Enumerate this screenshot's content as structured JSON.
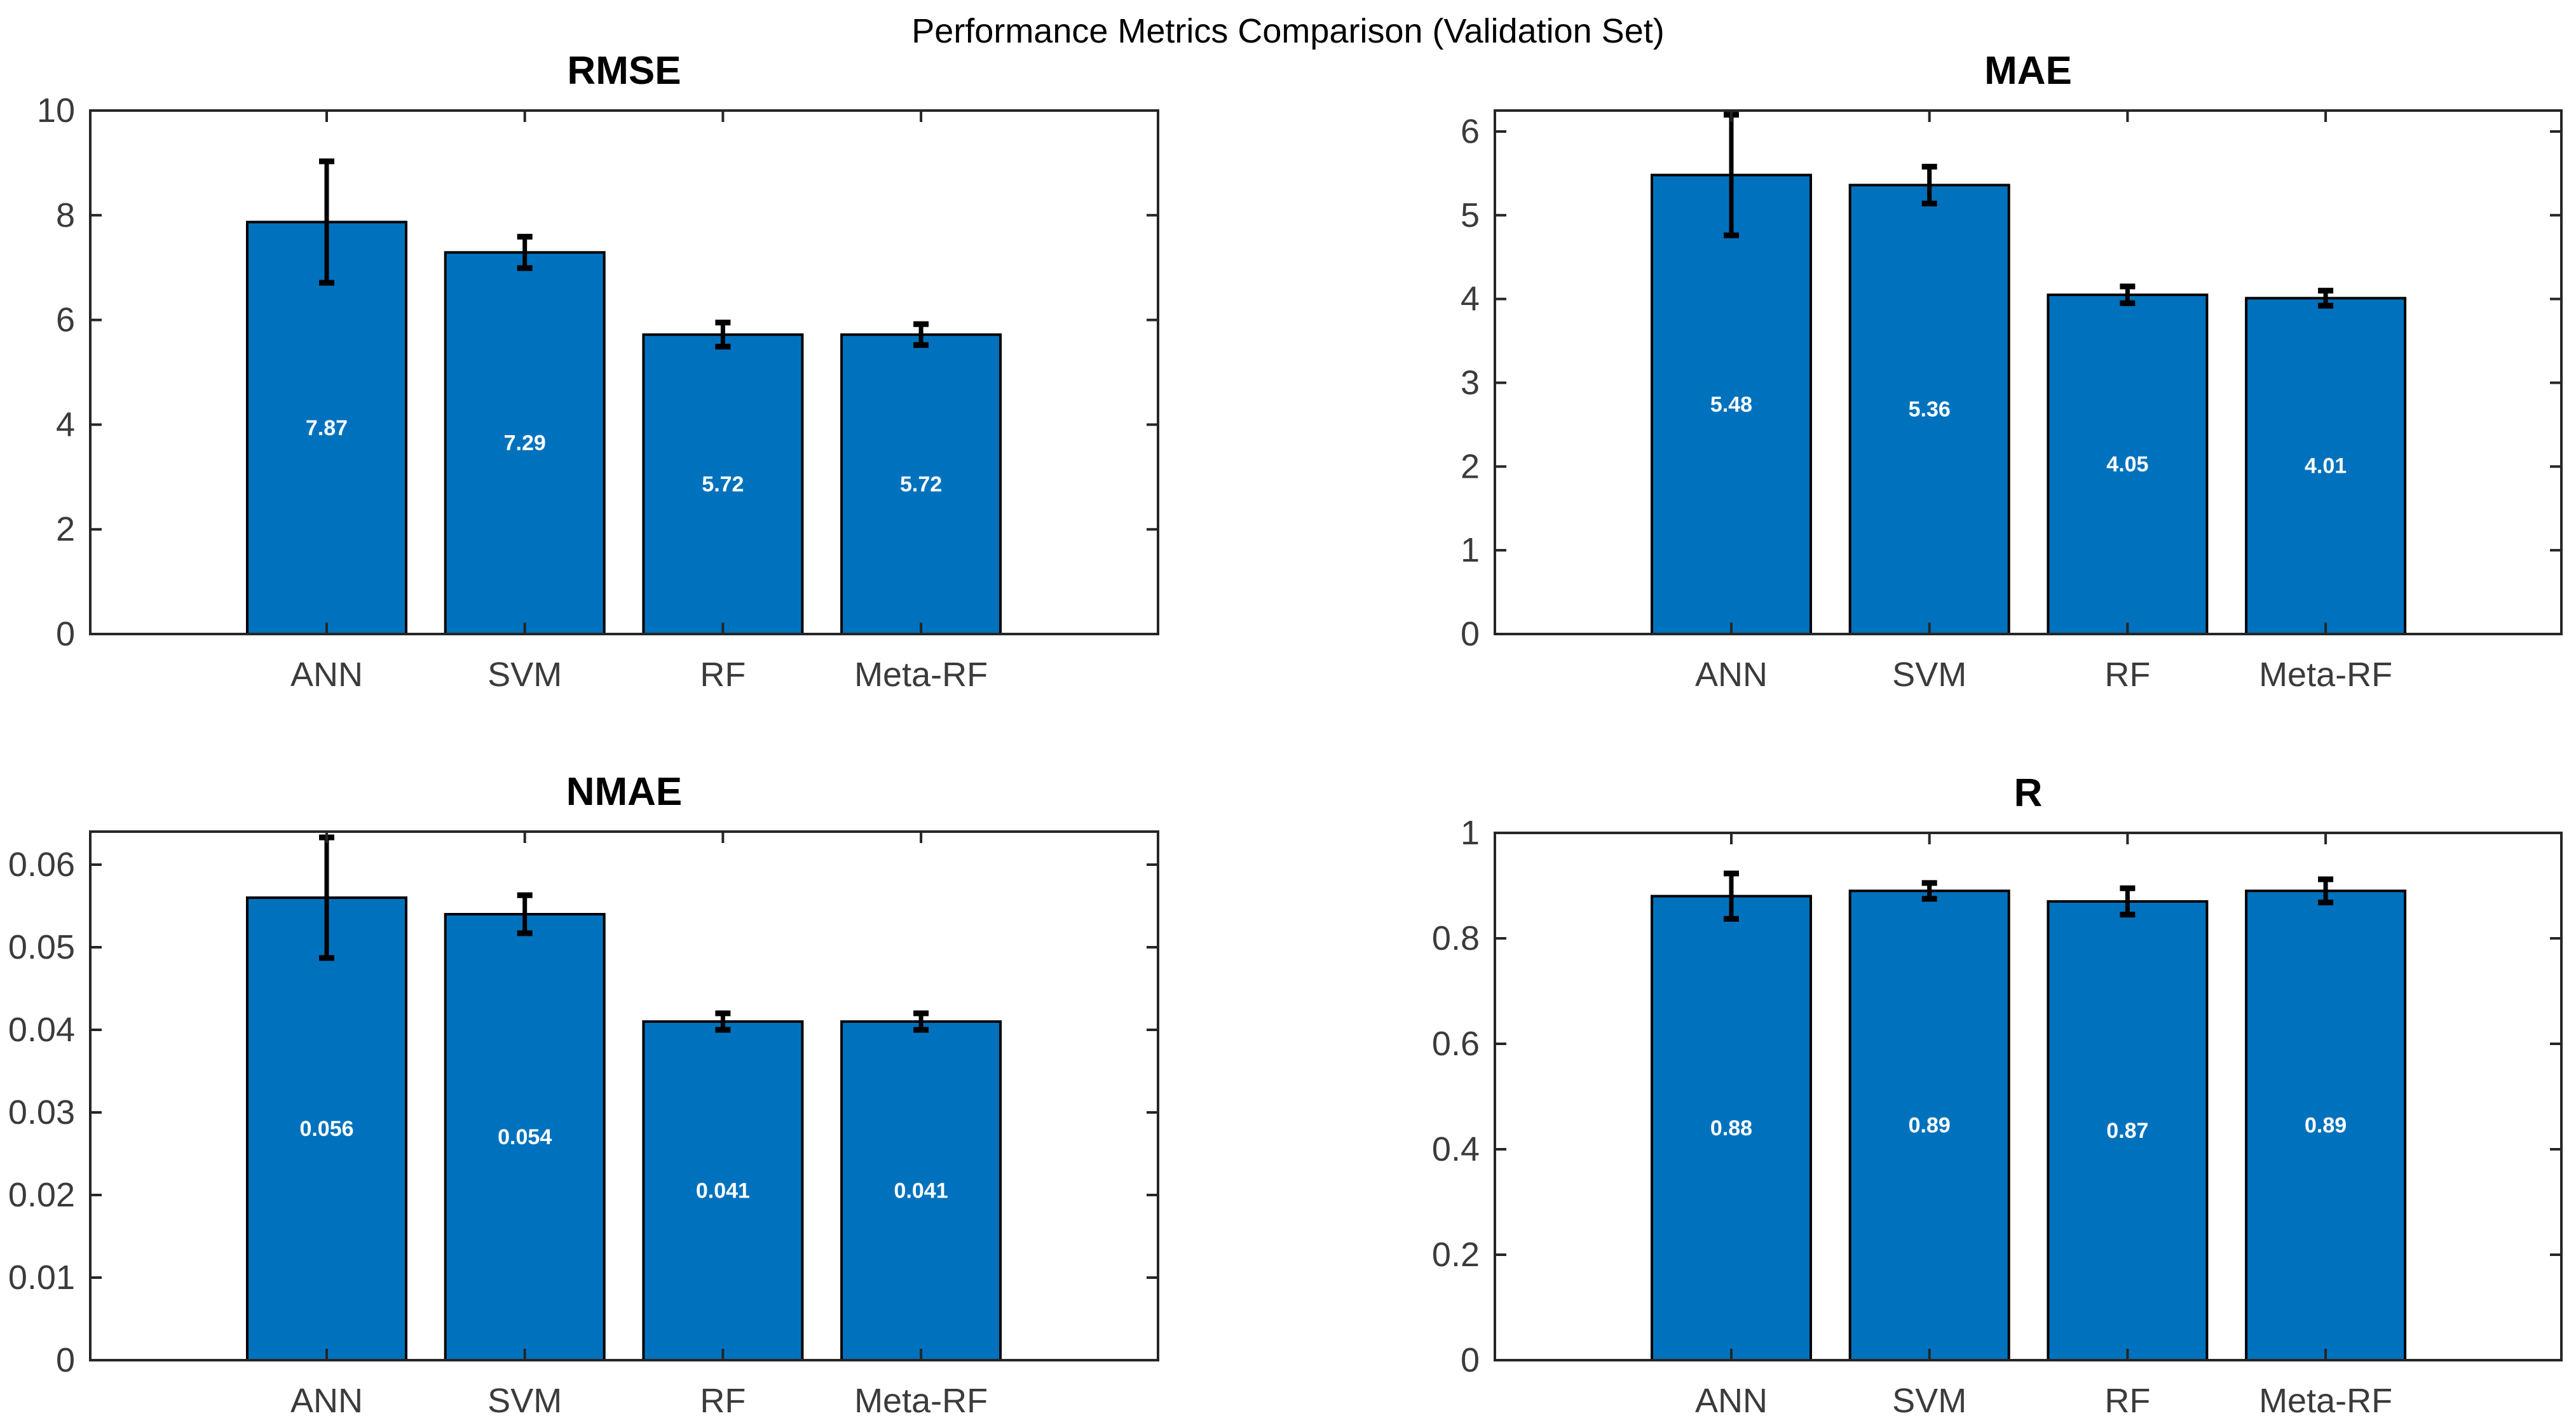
{
  "figure": {
    "suptitle": "Performance Metrics Comparison (Validation Set)",
    "colors": {
      "bar_fill": "#0072BD",
      "bar_edge": "#000000",
      "error_bar": "#000000",
      "axis_box": "#262626",
      "tick_label": "#3b3b3b",
      "title_color": "#000000",
      "bar_value_label": "#ffffff",
      "background": "#ffffff"
    }
  },
  "chart_data": [
    {
      "type": "bar",
      "title": "RMSE",
      "categories": [
        "ANN",
        "SVM",
        "RF",
        "Meta-RF"
      ],
      "values": [
        7.87,
        7.29,
        5.72,
        5.72
      ],
      "errors": [
        1.16,
        0.3,
        0.23,
        0.2
      ],
      "bar_labels": [
        "7.87",
        "7.29",
        "5.72",
        "5.72"
      ],
      "xlabel": "",
      "ylabel": "",
      "ylim": [
        0,
        10
      ],
      "grid": false,
      "legend": null,
      "yticks": [
        {
          "v": 0,
          "label": "0"
        },
        {
          "v": 2,
          "label": "2"
        },
        {
          "v": 4,
          "label": "4"
        },
        {
          "v": 6,
          "label": "6"
        },
        {
          "v": 8,
          "label": "8"
        },
        {
          "v": 10,
          "label": "10"
        }
      ]
    },
    {
      "type": "bar",
      "title": "MAE",
      "categories": [
        "ANN",
        "SVM",
        "RF",
        "Meta-RF"
      ],
      "values": [
        5.48,
        5.36,
        4.05,
        4.01
      ],
      "errors": [
        0.72,
        0.22,
        0.1,
        0.09
      ],
      "bar_labels": [
        "5.48",
        "5.36",
        "4.05",
        "4.01"
      ],
      "xlabel": "",
      "ylabel": "",
      "ylim": [
        0,
        6.25
      ],
      "grid": false,
      "legend": null,
      "yticks": [
        {
          "v": 0,
          "label": "0"
        },
        {
          "v": 1,
          "label": "1"
        },
        {
          "v": 2,
          "label": "2"
        },
        {
          "v": 3,
          "label": "3"
        },
        {
          "v": 4,
          "label": "4"
        },
        {
          "v": 5,
          "label": "5"
        },
        {
          "v": 6,
          "label": "6"
        }
      ]
    },
    {
      "type": "bar",
      "title": "NMAE",
      "categories": [
        "ANN",
        "SVM",
        "RF",
        "Meta-RF"
      ],
      "values": [
        0.056,
        0.054,
        0.041,
        0.041
      ],
      "errors": [
        0.0073,
        0.0023,
        0.001,
        0.001
      ],
      "bar_labels": [
        "0.056",
        "0.054",
        "0.041",
        "0.041"
      ],
      "xlabel": "",
      "ylabel": "",
      "ylim": [
        0,
        0.064
      ],
      "grid": false,
      "legend": null,
      "yticks": [
        {
          "v": 0,
          "label": "0"
        },
        {
          "v": 0.01,
          "label": "0.01"
        },
        {
          "v": 0.02,
          "label": "0.02"
        },
        {
          "v": 0.03,
          "label": "0.03"
        },
        {
          "v": 0.04,
          "label": "0.04"
        },
        {
          "v": 0.05,
          "label": "0.05"
        },
        {
          "v": 0.06,
          "label": "0.06"
        }
      ]
    },
    {
      "type": "bar",
      "title": "R",
      "categories": [
        "ANN",
        "SVM",
        "RF",
        "Meta-RF"
      ],
      "values": [
        0.88,
        0.89,
        0.87,
        0.89
      ],
      "errors": [
        0.043,
        0.015,
        0.025,
        0.022
      ],
      "bar_labels": [
        "0.88",
        "0.89",
        "0.87",
        "0.89"
      ],
      "xlabel": "",
      "ylabel": "",
      "ylim": [
        0,
        1
      ],
      "grid": false,
      "legend": null,
      "yticks": [
        {
          "v": 0,
          "label": "0"
        },
        {
          "v": 0.2,
          "label": "0.2"
        },
        {
          "v": 0.4,
          "label": "0.4"
        },
        {
          "v": 0.6,
          "label": "0.6"
        },
        {
          "v": 0.8,
          "label": "0.8"
        },
        {
          "v": 1,
          "label": "1"
        }
      ]
    }
  ]
}
